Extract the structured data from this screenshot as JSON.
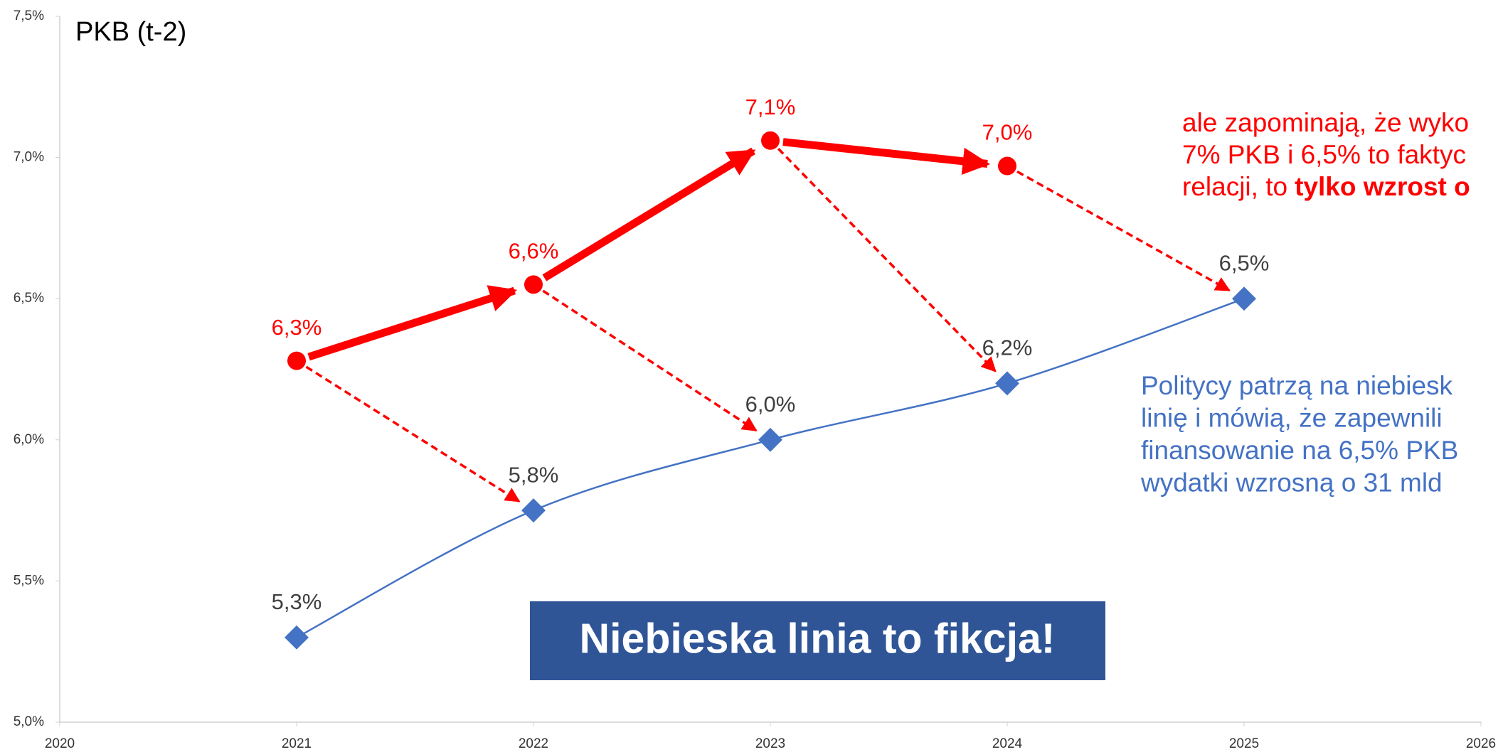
{
  "chart_data": {
    "type": "line",
    "title": "PKB (t-2)",
    "xlim": [
      2020,
      2026
    ],
    "xticks": [
      2020,
      2021,
      2022,
      2023,
      2024,
      2025,
      2026
    ],
    "ylim": [
      5,
      7.5
    ],
    "yticks": [
      {
        "value": 5,
        "label": "5,0%"
      },
      {
        "value": 5.5,
        "label": "5,5%"
      },
      {
        "value": 6,
        "label": "6,0%"
      },
      {
        "value": 6.5,
        "label": "6,5%"
      },
      {
        "value": 7,
        "label": "7,0%"
      },
      {
        "value": 7.5,
        "label": "7,5%"
      }
    ],
    "series": [
      {
        "color": "#4472c4",
        "x": [
          2021,
          2022,
          2023,
          2024,
          2025
        ],
        "values": [
          5.3,
          5.75,
          6.0,
          6.2,
          6.5
        ],
        "value_labels": [
          "5,3%",
          "5,8%",
          "6,0%",
          "6,2%",
          "6,5%"
        ]
      },
      {
        "color": "#ff0000",
        "x": [
          2021,
          2022,
          2023,
          2024
        ],
        "values": [
          6.28,
          6.55,
          7.06,
          6.97
        ],
        "value_labels": [
          "6,3%",
          "6,6%",
          "7,1%",
          "7,0%"
        ]
      }
    ],
    "annotation_red": [
      "ale zapominają, że wyko",
      "7% PKB i 6,5% to faktyc",
      "relacji, to"
    ],
    "annotation_red_bold": "tylko wzrost o",
    "annotation_blue": [
      "Politycy patrzą na niebiesk",
      "linię i mówią, że  zapewnili",
      "finansowanie na 6,5% PKB",
      "wydatki wzrosną o 31 mld"
    ],
    "banner": "Niebieska linia to fikcja!"
  }
}
